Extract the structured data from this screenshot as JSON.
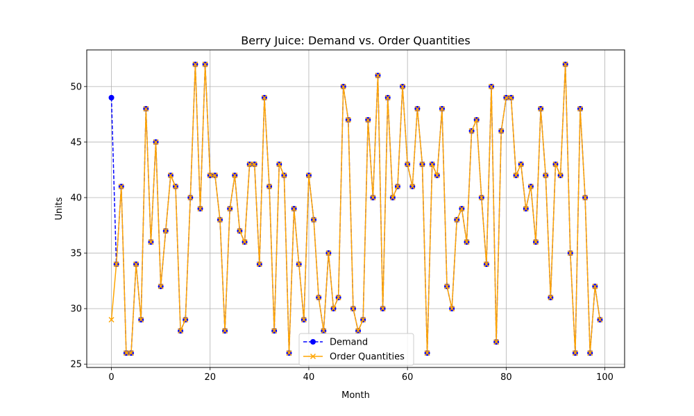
{
  "chart_data": {
    "type": "line",
    "title": "Berry Juice: Demand vs. Order Quantities",
    "xlabel": "Month",
    "ylabel": "Units",
    "xlim": [
      -5,
      104
    ],
    "ylim": [
      24.7,
      53.3
    ],
    "xticks": [
      0,
      20,
      40,
      60,
      80,
      100
    ],
    "yticks": [
      25,
      30,
      35,
      40,
      45,
      50
    ],
    "grid": true,
    "legend_position": "bottom-center",
    "x": [
      0,
      1,
      2,
      3,
      4,
      5,
      6,
      7,
      8,
      9,
      10,
      11,
      12,
      13,
      14,
      15,
      16,
      17,
      18,
      19,
      20,
      21,
      22,
      23,
      24,
      25,
      26,
      27,
      28,
      29,
      30,
      31,
      32,
      33,
      34,
      35,
      36,
      37,
      38,
      39,
      40,
      41,
      42,
      43,
      44,
      45,
      46,
      47,
      48,
      49,
      50,
      51,
      52,
      53,
      54,
      55,
      56,
      57,
      58,
      59,
      60,
      61,
      62,
      63,
      64,
      65,
      66,
      67,
      68,
      69,
      70,
      71,
      72,
      73,
      74,
      75,
      76,
      77,
      78,
      79,
      80,
      81,
      82,
      83,
      84,
      85,
      86,
      87,
      88,
      89,
      90,
      91,
      92,
      93,
      94,
      95,
      96,
      97,
      98,
      99
    ],
    "series": [
      {
        "name": "Demand",
        "color": "#0000ff",
        "style": "dashed",
        "marker": "circle",
        "values": [
          49,
          34,
          41,
          26,
          26,
          34,
          29,
          48,
          36,
          45,
          32,
          37,
          42,
          41,
          28,
          29,
          40,
          52,
          39,
          52,
          42,
          42,
          38,
          28,
          39,
          42,
          37,
          36,
          43,
          43,
          34,
          49,
          41,
          28,
          43,
          42,
          26,
          39,
          34,
          29,
          42,
          38,
          31,
          28,
          35,
          30,
          31,
          50,
          47,
          30,
          28,
          29,
          47,
          40,
          51,
          30,
          49,
          40,
          41,
          50,
          43,
          41,
          48,
          43,
          26,
          43,
          42,
          48,
          32,
          30,
          38,
          39,
          36,
          46,
          47,
          40,
          34,
          50,
          27,
          46,
          49,
          49,
          42,
          43,
          39,
          41,
          36,
          48,
          42,
          31,
          43,
          42,
          52,
          35,
          26,
          48,
          40,
          26,
          32,
          29
        ]
      },
      {
        "name": "Order Quantities",
        "color": "#ffa500",
        "style": "solid",
        "marker": "x",
        "values": [
          29,
          34,
          41,
          26,
          26,
          34,
          29,
          48,
          36,
          45,
          32,
          37,
          42,
          41,
          28,
          29,
          40,
          52,
          39,
          52,
          42,
          42,
          38,
          28,
          39,
          42,
          37,
          36,
          43,
          43,
          34,
          49,
          41,
          28,
          43,
          42,
          26,
          39,
          34,
          29,
          42,
          38,
          31,
          28,
          35,
          30,
          31,
          50,
          47,
          30,
          28,
          29,
          47,
          40,
          51,
          30,
          49,
          40,
          41,
          50,
          43,
          41,
          48,
          43,
          26,
          43,
          42,
          48,
          32,
          30,
          38,
          39,
          36,
          46,
          47,
          40,
          34,
          50,
          27,
          46,
          49,
          49,
          42,
          43,
          39,
          41,
          36,
          48,
          42,
          31,
          43,
          42,
          52,
          35,
          26,
          48,
          40,
          26,
          32,
          29
        ]
      }
    ]
  }
}
